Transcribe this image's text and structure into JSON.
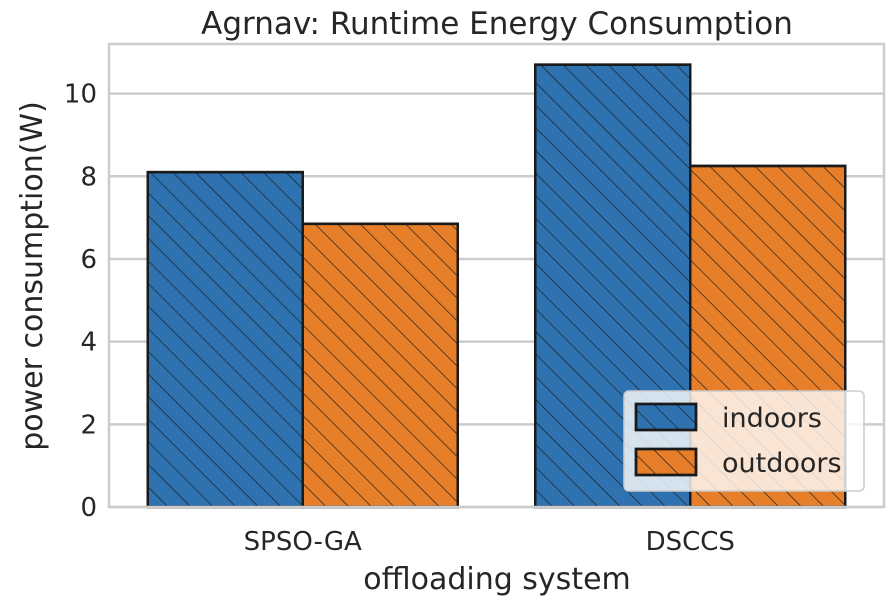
{
  "chart_data": {
    "type": "bar",
    "title": "Agrnav: Runtime Energy Consumption",
    "xlabel": "offloading system",
    "ylabel": "power consumption(W)",
    "categories": [
      "SPSO-GA",
      "DSCCS"
    ],
    "series": [
      {
        "name": "indoors",
        "values": [
          8.1,
          10.7
        ],
        "color": "#2e72b0"
      },
      {
        "name": "outdoors",
        "values": [
          6.85,
          8.25
        ],
        "color": "#e67e2a"
      }
    ],
    "ylim": [
      0,
      11.2
    ],
    "yticks": [
      0,
      2,
      4,
      6,
      8,
      10
    ],
    "grid": true,
    "hatch": "diagonal",
    "legend_position": "bottom-right"
  }
}
